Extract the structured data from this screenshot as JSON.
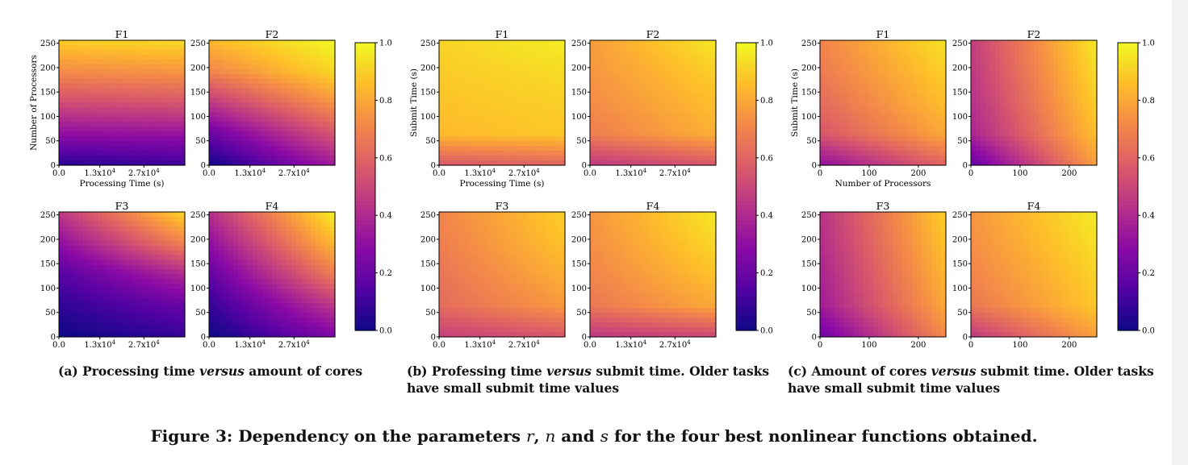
{
  "figure": {
    "caption_prefix": "Figure 3: Dependency on the parameters ",
    "caption_v1": "r",
    "caption_sep1": ", ",
    "caption_v2": "n",
    "caption_sep2": " and ",
    "caption_v3": "s",
    "caption_suffix": " for the four best nonlinear functions obtained."
  },
  "subcaptions": [
    {
      "pre": "(a) Processing time ",
      "em": "versus",
      "post": " amount of cores",
      "line2": ""
    },
    {
      "pre": "(b) Professing time ",
      "em": "versus",
      "post": " submit time. Older tasks",
      "line2": "have small submit time values"
    },
    {
      "pre": "(c) Amount of cores ",
      "em": "versus",
      "post": " submit time. Older tasks",
      "line2": "have small submit time values"
    }
  ],
  "colors": {
    "colormap": "plasma",
    "stops": [
      "#0d0887",
      "#5302a3",
      "#8b0aa5",
      "#b83289",
      "#db5c68",
      "#f48849",
      "#febd2a",
      "#f0f921"
    ]
  },
  "chart_data": [
    {
      "type": "heatmap",
      "group": "a",
      "colormap": "plasma",
      "colorbar": {
        "ticks": [
          "0.0",
          "0.2",
          "0.4",
          "0.6",
          "0.8",
          "1.0"
        ],
        "range": [
          0,
          1
        ]
      },
      "panels": [
        {
          "title": "F1",
          "xlabel": "Processing Time (s)",
          "ylabel": "Number of Processors",
          "xticks": [
            "0.0",
            "1.3x10⁴",
            "2.7x10⁴"
          ],
          "yticks": [
            "0",
            "50",
            "100",
            "150",
            "200",
            "250"
          ],
          "xlim": [
            0,
            40000
          ],
          "ylim": [
            0,
            256
          ],
          "grid": [
            [
              0.05,
              0.1
            ],
            [
              0.3,
              0.32
            ],
            [
              0.52,
              0.55
            ],
            [
              0.72,
              0.75
            ],
            [
              0.9,
              0.93
            ]
          ]
        },
        {
          "title": "F2",
          "xlabel": "",
          "ylabel": "",
          "xticks": [
            "0.0",
            "1.3x10⁴",
            "2.7x10⁴"
          ],
          "yticks": [
            "0",
            "50",
            "100",
            "150",
            "200",
            "250"
          ],
          "xlim": [
            0,
            40000
          ],
          "ylim": [
            0,
            256
          ],
          "grid": [
            [
              0.0,
              0.35
            ],
            [
              0.2,
              0.55
            ],
            [
              0.45,
              0.75
            ],
            [
              0.7,
              0.92
            ],
            [
              0.85,
              1.0
            ]
          ]
        },
        {
          "title": "F3",
          "xlabel": "",
          "ylabel": "",
          "xticks": [
            "0.0",
            "1.3x10⁴",
            "2.7x10⁴"
          ],
          "yticks": [
            "0",
            "50",
            "100",
            "150",
            "200",
            "250"
          ],
          "xlim": [
            0,
            40000
          ],
          "ylim": [
            0,
            256
          ],
          "grid": [
            [
              0.0,
              0.08
            ],
            [
              0.07,
              0.2
            ],
            [
              0.15,
              0.4
            ],
            [
              0.3,
              0.7
            ],
            [
              0.45,
              0.92
            ]
          ]
        },
        {
          "title": "F4",
          "xlabel": "",
          "ylabel": "",
          "xticks": [
            "0.0",
            "1.3x10⁴",
            "2.7x10⁴"
          ],
          "yticks": [
            "0",
            "50",
            "100",
            "150",
            "200",
            "250"
          ],
          "xlim": [
            0,
            40000
          ],
          "ylim": [
            0,
            256
          ],
          "grid": [
            [
              0.0,
              0.25
            ],
            [
              0.08,
              0.45
            ],
            [
              0.18,
              0.68
            ],
            [
              0.3,
              0.85
            ],
            [
              0.42,
              0.98
            ]
          ]
        }
      ]
    },
    {
      "type": "heatmap",
      "group": "b",
      "colormap": "plasma",
      "colorbar": {
        "ticks": [
          "0.0",
          "0.2",
          "0.4",
          "0.6",
          "0.8",
          "1.0"
        ],
        "range": [
          0,
          1
        ]
      },
      "panels": [
        {
          "title": "F1",
          "xlabel": "Processing Time (s)",
          "ylabel": "Submit Time (s)",
          "xticks": [
            "0.0",
            "1.3x10⁴",
            "2.7x10⁴"
          ],
          "yticks": [
            "0",
            "50",
            "100",
            "150",
            "200",
            "250"
          ],
          "xlim": [
            0,
            40000
          ],
          "ylim": [
            0,
            256
          ],
          "grid": [
            [
              0.55,
              0.6
            ],
            [
              0.85,
              0.88
            ],
            [
              0.87,
              0.9
            ],
            [
              0.89,
              0.93
            ],
            [
              0.91,
              0.97
            ]
          ]
        },
        {
          "title": "F2",
          "xlabel": "",
          "ylabel": "",
          "xticks": [
            "0.0",
            "1.3x10⁴",
            "2.7x10⁴"
          ],
          "yticks": [
            "0",
            "50",
            "100",
            "150",
            "200",
            "250"
          ],
          "xlim": [
            0,
            40000
          ],
          "ylim": [
            0,
            256
          ],
          "grid": [
            [
              0.45,
              0.55
            ],
            [
              0.68,
              0.82
            ],
            [
              0.72,
              0.86
            ],
            [
              0.75,
              0.9
            ],
            [
              0.77,
              0.96
            ]
          ]
        },
        {
          "title": "F3",
          "xlabel": "",
          "ylabel": "",
          "xticks": [
            "0.0",
            "1.3x10⁴",
            "2.7x10⁴"
          ],
          "yticks": [
            "0",
            "50",
            "100",
            "150",
            "200",
            "250"
          ],
          "xlim": [
            0,
            40000
          ],
          "ylim": [
            0,
            256
          ],
          "grid": [
            [
              0.48,
              0.55
            ],
            [
              0.62,
              0.76
            ],
            [
              0.65,
              0.82
            ],
            [
              0.68,
              0.87
            ],
            [
              0.7,
              0.9
            ]
          ]
        },
        {
          "title": "F4",
          "xlabel": "",
          "ylabel": "",
          "xticks": [
            "0.0",
            "1.3x10⁴",
            "2.7x10⁴"
          ],
          "yticks": [
            "0",
            "50",
            "100",
            "150",
            "200",
            "250"
          ],
          "xlim": [
            0,
            40000
          ],
          "ylim": [
            0,
            256
          ],
          "grid": [
            [
              0.45,
              0.5
            ],
            [
              0.66,
              0.8
            ],
            [
              0.7,
              0.87
            ],
            [
              0.73,
              0.92
            ],
            [
              0.75,
              0.96
            ]
          ]
        }
      ]
    },
    {
      "type": "heatmap",
      "group": "c",
      "colormap": "plasma",
      "colorbar": {
        "ticks": [
          "0.0",
          "0.2",
          "0.4",
          "0.6",
          "0.8",
          "1.0"
        ],
        "range": [
          0,
          1
        ]
      },
      "panels": [
        {
          "title": "F1",
          "xlabel": "Number of Processors",
          "ylabel": "Submit Time (s)",
          "xticks": [
            "0",
            "100",
            "200"
          ],
          "yticks": [
            "0",
            "50",
            "100",
            "150",
            "200",
            "250"
          ],
          "xlim": [
            0,
            256
          ],
          "ylim": [
            0,
            256
          ],
          "grid": [
            [
              0.3,
              0.6
            ],
            [
              0.55,
              0.8
            ],
            [
              0.62,
              0.86
            ],
            [
              0.67,
              0.9
            ],
            [
              0.7,
              0.95
            ]
          ]
        },
        {
          "title": "F2",
          "xlabel": "",
          "ylabel": "",
          "xticks": [
            "0",
            "100",
            "200"
          ],
          "yticks": [
            "0",
            "50",
            "100",
            "150",
            "200",
            "250"
          ],
          "xlim": [
            0,
            256
          ],
          "ylim": [
            0,
            256
          ],
          "grid": [
            [
              0.18,
              0.78
            ],
            [
              0.38,
              0.86
            ],
            [
              0.42,
              0.9
            ],
            [
              0.45,
              0.93
            ],
            [
              0.47,
              0.96
            ]
          ]
        },
        {
          "title": "F3",
          "xlabel": "",
          "ylabel": "",
          "xticks": [
            "0",
            "100",
            "200"
          ],
          "yticks": [
            "0",
            "50",
            "100",
            "150",
            "200",
            "250"
          ],
          "xlim": [
            0,
            256
          ],
          "ylim": [
            0,
            256
          ],
          "grid": [
            [
              0.2,
              0.72
            ],
            [
              0.35,
              0.8
            ],
            [
              0.38,
              0.84
            ],
            [
              0.41,
              0.87
            ],
            [
              0.43,
              0.9
            ]
          ]
        },
        {
          "title": "F4",
          "xlabel": "",
          "ylabel": "",
          "xticks": [
            "0",
            "100",
            "200"
          ],
          "yticks": [
            "0",
            "50",
            "100",
            "150",
            "200",
            "250"
          ],
          "xlim": [
            0,
            256
          ],
          "ylim": [
            0,
            256
          ],
          "grid": [
            [
              0.45,
              0.78
            ],
            [
              0.66,
              0.88
            ],
            [
              0.7,
              0.91
            ],
            [
              0.73,
              0.94
            ],
            [
              0.75,
              0.97
            ]
          ]
        }
      ]
    }
  ]
}
